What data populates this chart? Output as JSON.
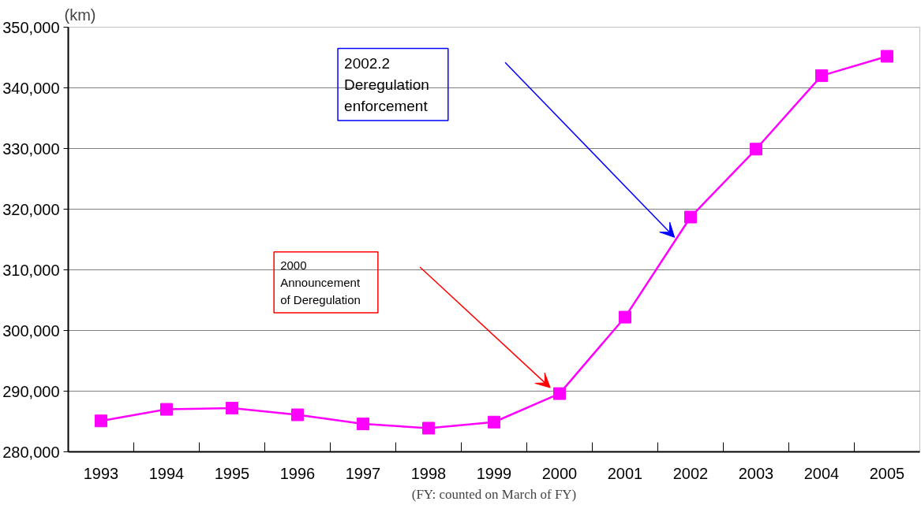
{
  "chart_data": {
    "type": "line",
    "ylabel": "(km)",
    "categories": [
      "1993",
      "1994",
      "1995",
      "1996",
      "1997",
      "1998",
      "1999",
      "2000",
      "2001",
      "2002",
      "2003",
      "2004",
      "2005"
    ],
    "series": [
      {
        "color": "#ff00ff",
        "values": [
          285100,
          287000,
          287200,
          286100,
          284600,
          283900,
          284900,
          289600,
          302200,
          318700,
          329900,
          342000,
          345200
        ]
      }
    ],
    "marker": "square",
    "line_style": "solid",
    "grid": "y",
    "ylim": [
      280000,
      350000
    ],
    "yticks": [
      {
        "value": 280000,
        "label": "280,000"
      },
      {
        "value": 290000,
        "label": "290,000"
      },
      {
        "value": 300000,
        "label": "300,000"
      },
      {
        "value": 310000,
        "label": "310,000"
      },
      {
        "value": 320000,
        "label": "320,000"
      },
      {
        "value": 330000,
        "label": "330,000"
      },
      {
        "value": 340000,
        "label": "340,000"
      },
      {
        "value": 350000,
        "label": "350,000"
      }
    ],
    "annotations": [
      "2000\nAnnouncement\nof Deregulation",
      "2002.2\nDeregulation\nenforcement",
      "(FY: counted on March of FY)"
    ]
  }
}
